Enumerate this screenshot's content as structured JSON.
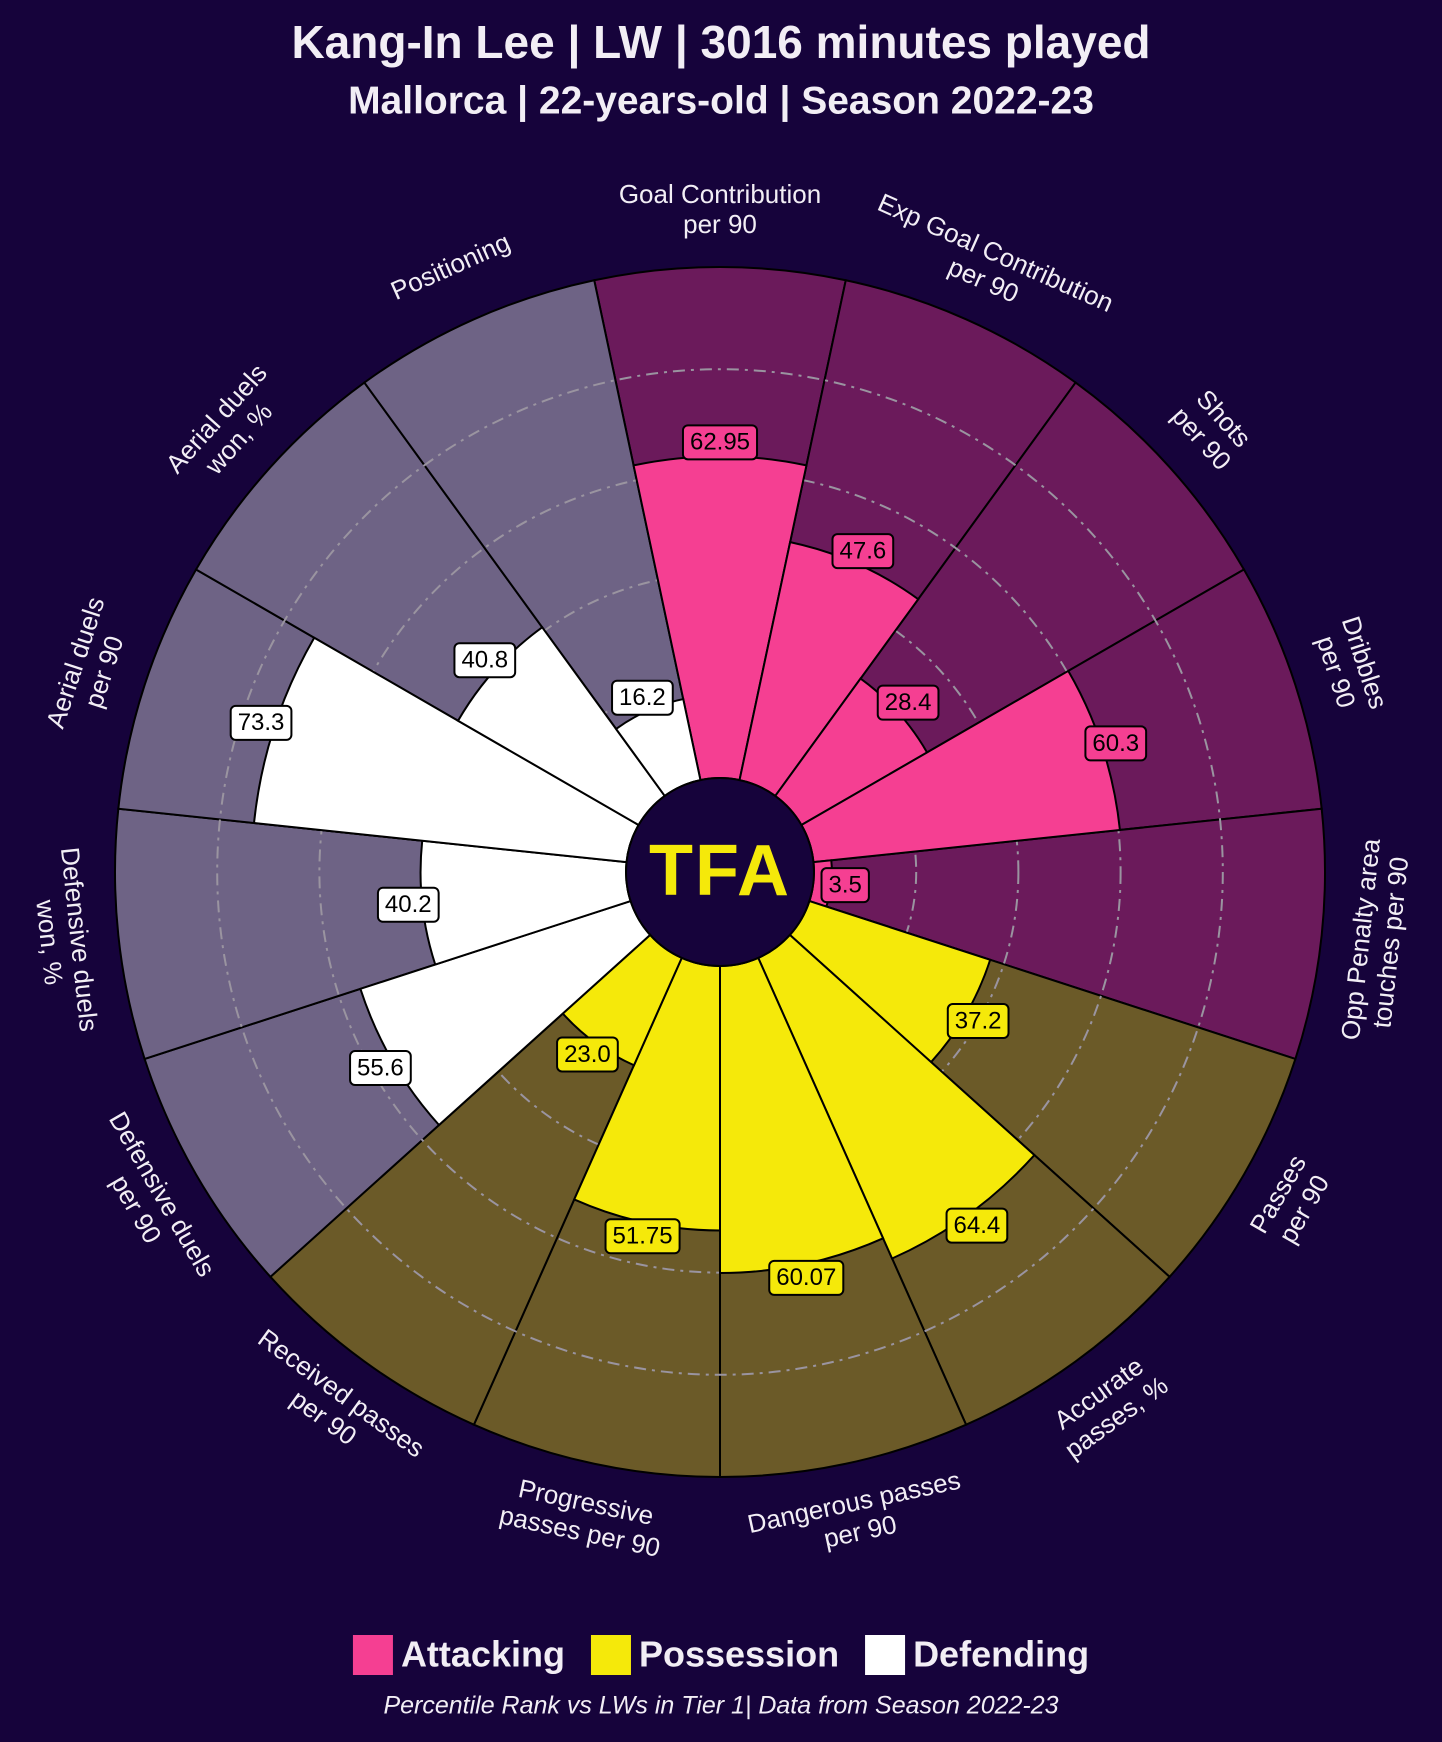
{
  "chart_data": {
    "type": "pizza",
    "title": "Kang-In Lee | LW | 3016 minutes played",
    "subtitle": "Mallorca | 22-years-old | Season 2022-23",
    "logo": "TFA",
    "footnote": "Percentile Rank vs LWs in Tier 1| Data from Season 2022-23",
    "rlim": [
      0,
      100
    ],
    "grid_circles": [
      20,
      40,
      60,
      80
    ],
    "series": [
      {
        "name": "Attacking",
        "color": "#f53f92",
        "background_color": "#6b1a5b",
        "params": [
          [
            "Goal Contribution",
            "per 90"
          ],
          [
            "Exp Goal Contribution",
            "per 90"
          ],
          [
            "Shots",
            "per 90"
          ],
          [
            "Dribbles",
            "per 90"
          ],
          [
            "Opp Penalty area",
            "touches per 90"
          ]
        ],
        "values": [
          62.95,
          47.6,
          28.4,
          60.3,
          3.5
        ],
        "value_labels": [
          "62.95",
          "47.6",
          "28.4",
          "60.3",
          "3.5"
        ]
      },
      {
        "name": "Possession",
        "color": "#f5e90a",
        "background_color": "#6b5a28",
        "params": [
          [
            "Passes",
            "per 90"
          ],
          [
            "Accurate",
            "passes, %"
          ],
          [
            "Dangerous passes",
            "per 90"
          ],
          [
            "Progressive",
            "passes per 90"
          ],
          [
            "Received passes",
            "per 90"
          ]
        ],
        "values": [
          37.2,
          64.4,
          60.07,
          51.75,
          23.0
        ],
        "value_labels": [
          "37.2",
          "64.4",
          "60.07",
          "51.75",
          "23.0"
        ]
      },
      {
        "name": "Defending",
        "color": "#ffffff",
        "background_color": "#6e6385",
        "params": [
          [
            "Defensive duels",
            "per 90"
          ],
          [
            "Defensive duels",
            "won, %"
          ],
          [
            "Aerial duels",
            "per 90"
          ],
          [
            "Aerial duels",
            "won, %"
          ],
          [
            "Positioning"
          ]
        ],
        "values": [
          55.6,
          40.2,
          73.3,
          40.8,
          16.2
        ],
        "value_labels": [
          "55.6",
          "40.2",
          "73.3",
          "40.8",
          "16.2"
        ]
      }
    ]
  }
}
